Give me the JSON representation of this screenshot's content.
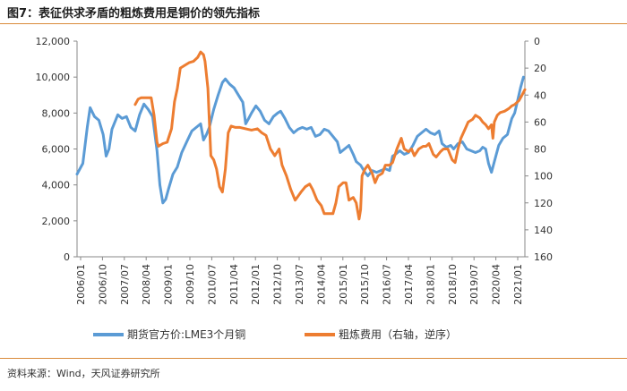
{
  "figure": {
    "title": "图7：表征供求矛盾的粗炼费用是铜价的领先指标",
    "source": "资料来源：Wind，天风证券研究所"
  },
  "colors": {
    "accent_line": "#d98a3a",
    "series1": "#5b9bd5",
    "series2": "#ed7d31",
    "axis": "#888888"
  },
  "chart_data": {
    "type": "line",
    "title": "图7：表征供求矛盾的粗炼费用是铜价的领先指标",
    "x_tick_labels": [
      "2006/01",
      "2006/10",
      "2007/07",
      "2008/04",
      "2009/01",
      "2009/10",
      "2010/07",
      "2011/04",
      "2012/01",
      "2012/10",
      "2013/07",
      "2014/04",
      "2015/01",
      "2015/10",
      "2016/07",
      "2017/04",
      "2018/01",
      "2018/10",
      "2019/07",
      "2020/04",
      "2021/01"
    ],
    "x_range": [
      2006.0,
      2021.4
    ],
    "y_left": {
      "label": "期货官方价:LME3个月铜",
      "range": [
        0,
        12000
      ],
      "ticks": [
        "0",
        "2,000",
        "4,000",
        "6,000",
        "8,000",
        "10,000",
        "12,000"
      ]
    },
    "y_right": {
      "label": "粗炼费用（右轴，逆序）",
      "range": [
        0,
        160
      ],
      "inverted": true,
      "ticks": [
        "0",
        "20",
        "40",
        "60",
        "80",
        "100",
        "120",
        "140",
        "160"
      ]
    },
    "series": [
      {
        "name": "期货官方价:LME3个月铜",
        "axis": "left",
        "points": [
          [
            2006.0,
            4600
          ],
          [
            2006.2,
            5200
          ],
          [
            2006.35,
            7200
          ],
          [
            2006.45,
            8300
          ],
          [
            2006.6,
            7800
          ],
          [
            2006.75,
            7600
          ],
          [
            2006.9,
            6800
          ],
          [
            2007.0,
            5600
          ],
          [
            2007.1,
            6000
          ],
          [
            2007.2,
            7100
          ],
          [
            2007.4,
            7900
          ],
          [
            2007.55,
            7700
          ],
          [
            2007.7,
            7800
          ],
          [
            2007.85,
            7200
          ],
          [
            2008.0,
            7000
          ],
          [
            2008.15,
            7900
          ],
          [
            2008.3,
            8500
          ],
          [
            2008.45,
            8200
          ],
          [
            2008.6,
            7800
          ],
          [
            2008.75,
            5900
          ],
          [
            2008.85,
            4000
          ],
          [
            2008.95,
            3000
          ],
          [
            2009.05,
            3200
          ],
          [
            2009.15,
            3800
          ],
          [
            2009.3,
            4600
          ],
          [
            2009.45,
            5000
          ],
          [
            2009.6,
            5800
          ],
          [
            2009.8,
            6500
          ],
          [
            2009.95,
            7000
          ],
          [
            2010.1,
            7200
          ],
          [
            2010.25,
            7400
          ],
          [
            2010.35,
            6500
          ],
          [
            2010.45,
            6800
          ],
          [
            2010.55,
            7200
          ],
          [
            2010.7,
            8200
          ],
          [
            2010.85,
            9000
          ],
          [
            2011.0,
            9700
          ],
          [
            2011.1,
            9900
          ],
          [
            2011.25,
            9600
          ],
          [
            2011.4,
            9400
          ],
          [
            2011.55,
            9000
          ],
          [
            2011.7,
            8600
          ],
          [
            2011.8,
            7400
          ],
          [
            2011.9,
            7700
          ],
          [
            2012.0,
            8000
          ],
          [
            2012.15,
            8400
          ],
          [
            2012.3,
            8100
          ],
          [
            2012.45,
            7600
          ],
          [
            2012.6,
            7400
          ],
          [
            2012.75,
            7800
          ],
          [
            2012.9,
            8000
          ],
          [
            2013.0,
            8100
          ],
          [
            2013.15,
            7700
          ],
          [
            2013.3,
            7200
          ],
          [
            2013.45,
            6900
          ],
          [
            2013.6,
            7100
          ],
          [
            2013.75,
            7200
          ],
          [
            2013.9,
            7100
          ],
          [
            2014.05,
            7200
          ],
          [
            2014.2,
            6700
          ],
          [
            2014.35,
            6800
          ],
          [
            2014.5,
            7100
          ],
          [
            2014.65,
            7000
          ],
          [
            2014.8,
            6700
          ],
          [
            2014.95,
            6400
          ],
          [
            2015.05,
            5800
          ],
          [
            2015.2,
            6000
          ],
          [
            2015.35,
            6200
          ],
          [
            2015.5,
            5700
          ],
          [
            2015.6,
            5300
          ],
          [
            2015.75,
            5100
          ],
          [
            2015.9,
            4700
          ],
          [
            2016.0,
            4500
          ],
          [
            2016.15,
            4800
          ],
          [
            2016.3,
            4700
          ],
          [
            2016.45,
            4800
          ],
          [
            2016.6,
            4900
          ],
          [
            2016.75,
            4800
          ],
          [
            2016.85,
            5600
          ],
          [
            2016.95,
            5700
          ],
          [
            2017.1,
            5900
          ],
          [
            2017.25,
            5700
          ],
          [
            2017.4,
            5800
          ],
          [
            2017.55,
            6200
          ],
          [
            2017.7,
            6700
          ],
          [
            2017.85,
            6900
          ],
          [
            2018.0,
            7100
          ],
          [
            2018.15,
            6900
          ],
          [
            2018.3,
            6800
          ],
          [
            2018.45,
            7000
          ],
          [
            2018.55,
            6300
          ],
          [
            2018.7,
            6100
          ],
          [
            2018.85,
            6200
          ],
          [
            2018.95,
            6000
          ],
          [
            2019.1,
            6300
          ],
          [
            2019.25,
            6400
          ],
          [
            2019.4,
            6000
          ],
          [
            2019.55,
            5900
          ],
          [
            2019.7,
            5800
          ],
          [
            2019.85,
            5900
          ],
          [
            2019.95,
            6100
          ],
          [
            2020.05,
            6000
          ],
          [
            2020.15,
            5200
          ],
          [
            2020.25,
            4700
          ],
          [
            2020.35,
            5300
          ],
          [
            2020.5,
            6200
          ],
          [
            2020.65,
            6600
          ],
          [
            2020.8,
            6800
          ],
          [
            2020.95,
            7700
          ],
          [
            2021.05,
            8000
          ],
          [
            2021.15,
            8700
          ],
          [
            2021.25,
            9400
          ],
          [
            2021.35,
            10000
          ]
        ]
      },
      {
        "name": "粗炼费用（右轴，逆序）",
        "axis": "right",
        "points": [
          [
            2008.0,
            47
          ],
          [
            2008.1,
            43
          ],
          [
            2008.2,
            42
          ],
          [
            2008.4,
            42
          ],
          [
            2008.55,
            42
          ],
          [
            2008.65,
            55
          ],
          [
            2008.75,
            75
          ],
          [
            2008.8,
            78
          ],
          [
            2008.95,
            76
          ],
          [
            2009.1,
            75
          ],
          [
            2009.25,
            65
          ],
          [
            2009.35,
            45
          ],
          [
            2009.45,
            35
          ],
          [
            2009.55,
            20
          ],
          [
            2009.7,
            18
          ],
          [
            2009.85,
            16
          ],
          [
            2010.0,
            15
          ],
          [
            2010.15,
            12
          ],
          [
            2010.25,
            8
          ],
          [
            2010.35,
            10
          ],
          [
            2010.4,
            15
          ],
          [
            2010.5,
            35
          ],
          [
            2010.6,
            85
          ],
          [
            2010.7,
            88
          ],
          [
            2010.8,
            95
          ],
          [
            2010.9,
            108
          ],
          [
            2011.0,
            112
          ],
          [
            2011.1,
            95
          ],
          [
            2011.2,
            68
          ],
          [
            2011.3,
            63
          ],
          [
            2011.45,
            64
          ],
          [
            2011.6,
            64
          ],
          [
            2011.8,
            65
          ],
          [
            2012.0,
            66
          ],
          [
            2012.2,
            65
          ],
          [
            2012.35,
            68
          ],
          [
            2012.5,
            70
          ],
          [
            2012.65,
            80
          ],
          [
            2012.8,
            85
          ],
          [
            2012.95,
            80
          ],
          [
            2013.05,
            92
          ],
          [
            2013.2,
            100
          ],
          [
            2013.35,
            110
          ],
          [
            2013.5,
            118
          ],
          [
            2013.6,
            115
          ],
          [
            2013.7,
            112
          ],
          [
            2013.85,
            108
          ],
          [
            2014.0,
            106
          ],
          [
            2014.1,
            110
          ],
          [
            2014.25,
            118
          ],
          [
            2014.4,
            122
          ],
          [
            2014.5,
            128
          ],
          [
            2014.65,
            128
          ],
          [
            2014.8,
            128
          ],
          [
            2014.9,
            120
          ],
          [
            2015.0,
            108
          ],
          [
            2015.15,
            105
          ],
          [
            2015.25,
            105
          ],
          [
            2015.35,
            118
          ],
          [
            2015.5,
            116
          ],
          [
            2015.6,
            120
          ],
          [
            2015.7,
            132
          ],
          [
            2015.75,
            125
          ],
          [
            2015.8,
            100
          ],
          [
            2015.9,
            95
          ],
          [
            2016.0,
            92
          ],
          [
            2016.15,
            98
          ],
          [
            2016.25,
            105
          ],
          [
            2016.35,
            100
          ],
          [
            2016.5,
            98
          ],
          [
            2016.6,
            92
          ],
          [
            2016.75,
            92
          ],
          [
            2016.85,
            90
          ],
          [
            2017.0,
            80
          ],
          [
            2017.15,
            72
          ],
          [
            2017.25,
            80
          ],
          [
            2017.4,
            82
          ],
          [
            2017.5,
            80
          ],
          [
            2017.6,
            85
          ],
          [
            2017.75,
            80
          ],
          [
            2017.9,
            78
          ],
          [
            2018.0,
            78
          ],
          [
            2018.1,
            76
          ],
          [
            2018.25,
            84
          ],
          [
            2018.35,
            86
          ],
          [
            2018.5,
            82
          ],
          [
            2018.6,
            80
          ],
          [
            2018.75,
            80
          ],
          [
            2018.9,
            88
          ],
          [
            2019.0,
            90
          ],
          [
            2019.1,
            80
          ],
          [
            2019.2,
            72
          ],
          [
            2019.35,
            65
          ],
          [
            2019.45,
            60
          ],
          [
            2019.6,
            58
          ],
          [
            2019.7,
            55
          ],
          [
            2019.85,
            57
          ],
          [
            2019.95,
            60
          ],
          [
            2020.05,
            62
          ],
          [
            2020.15,
            65
          ],
          [
            2020.25,
            62
          ],
          [
            2020.3,
            72
          ],
          [
            2020.35,
            60
          ],
          [
            2020.45,
            55
          ],
          [
            2020.55,
            53
          ],
          [
            2020.7,
            52
          ],
          [
            2020.85,
            50
          ],
          [
            2020.95,
            48
          ],
          [
            2021.05,
            47
          ],
          [
            2021.2,
            44
          ],
          [
            2021.3,
            40
          ],
          [
            2021.4,
            36
          ]
        ]
      }
    ]
  }
}
